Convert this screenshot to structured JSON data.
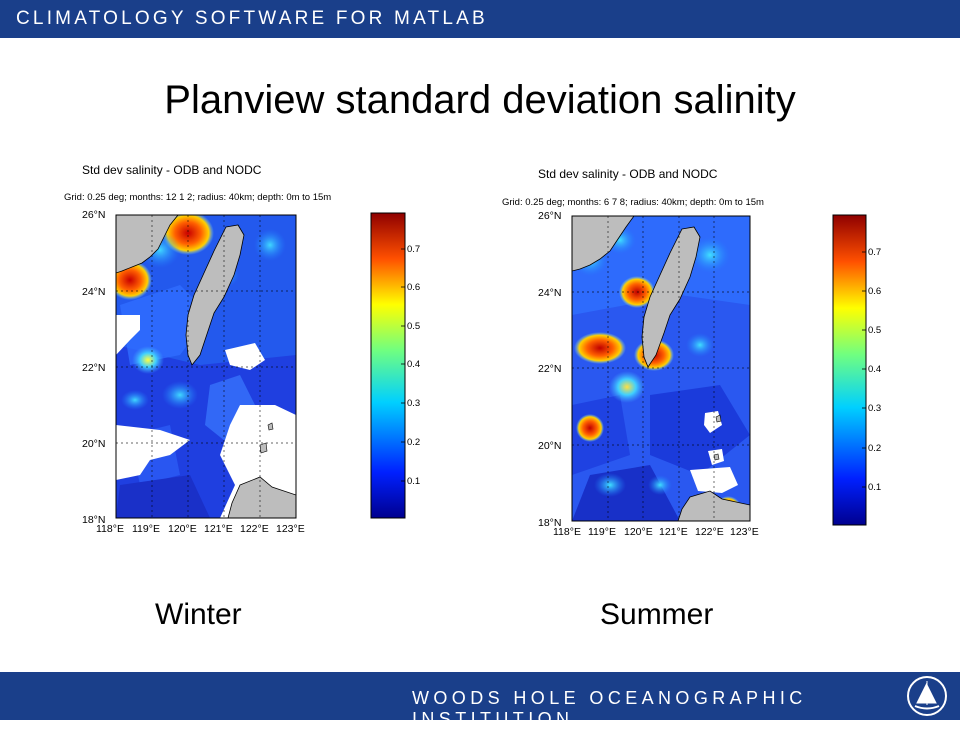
{
  "header": {
    "title": "CLIMATOLOGY SOFTWARE FOR MATLAB"
  },
  "footer": {
    "institution": "WOODS HOLE OCEANOGRAPHIC INSTITUTION"
  },
  "slide": {
    "title": "Planview standard deviation salinity"
  },
  "winter": {
    "label": "Winter",
    "plot_title": "Std dev salinity - ODB and NODC",
    "grid_info": "Grid: 0.25 deg; months: 12 1 2; radius: 40km; depth: 0m to 15m"
  },
  "summer": {
    "label": "Summer",
    "plot_title": "Std dev salinity - ODB and NODC",
    "grid_info": "Grid: 0.25 deg; months: 6 7 8; radius: 40km; depth: 0m to 15m"
  },
  "axes": {
    "lat_ticks": [
      "26°N",
      "24°N",
      "22°N",
      "20°N",
      "18°N"
    ],
    "lon_ticks": [
      "118°E",
      "119°E",
      "120°E",
      "121°E",
      "122°E",
      "123°E"
    ]
  },
  "colorbar": {
    "ticks": [
      "0.7",
      "0.6",
      "0.5",
      "0.4",
      "0.3",
      "0.2",
      "0.1"
    ]
  },
  "colors": {
    "bar": "#1a3f8a",
    "ocean_low": "#1f3fe0",
    "land": "#bdbdbd"
  }
}
